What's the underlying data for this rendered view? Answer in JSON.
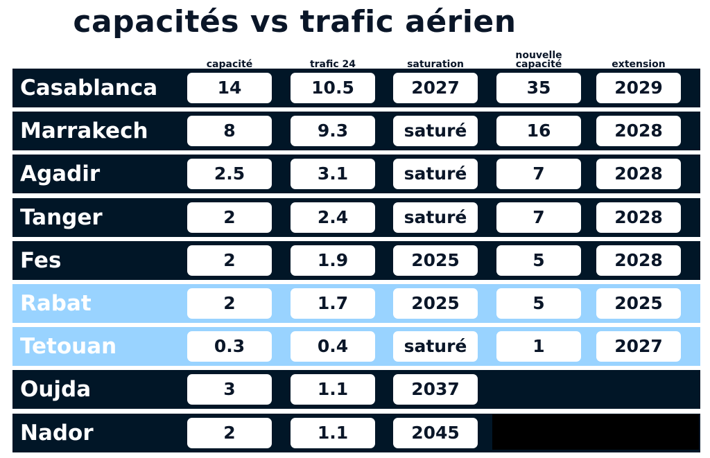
{
  "title": "capacités vs trafic aérien",
  "headers": [
    "capacité",
    "trafic 24",
    "saturation",
    "nouvelle capacité",
    "extension"
  ],
  "colors": {
    "dark_row": "#011627",
    "highlight_row": "#99d3ff",
    "cell": "#ffffff"
  },
  "rows": [
    {
      "city": "Casablanca",
      "values": [
        "14",
        "10.5",
        "2027",
        "35",
        "2029"
      ],
      "highlight": false
    },
    {
      "city": "Marrakech",
      "values": [
        "8",
        "9.3",
        "saturé",
        "16",
        "2028"
      ],
      "highlight": false
    },
    {
      "city": "Agadir",
      "values": [
        "2.5",
        "3.1",
        "saturé",
        "7",
        "2028"
      ],
      "highlight": false
    },
    {
      "city": "Tanger",
      "values": [
        "2",
        "2.4",
        "saturé",
        "7",
        "2028"
      ],
      "highlight": false
    },
    {
      "city": "Fes",
      "values": [
        "2",
        "1.9",
        "2025",
        "5",
        "2028"
      ],
      "highlight": false
    },
    {
      "city": "Rabat",
      "values": [
        "2",
        "1.7",
        "2025",
        "5",
        "2025"
      ],
      "highlight": true
    },
    {
      "city": "Tetouan",
      "values": [
        "0.3",
        "0.4",
        "saturé",
        "1",
        "2027"
      ],
      "highlight": true
    },
    {
      "city": "Oujda",
      "values": [
        "3",
        "1.1",
        "2037"
      ],
      "highlight": false
    },
    {
      "city": "Nador",
      "values": [
        "2",
        "1.1",
        "2045"
      ],
      "highlight": false,
      "redacted": true
    }
  ]
}
